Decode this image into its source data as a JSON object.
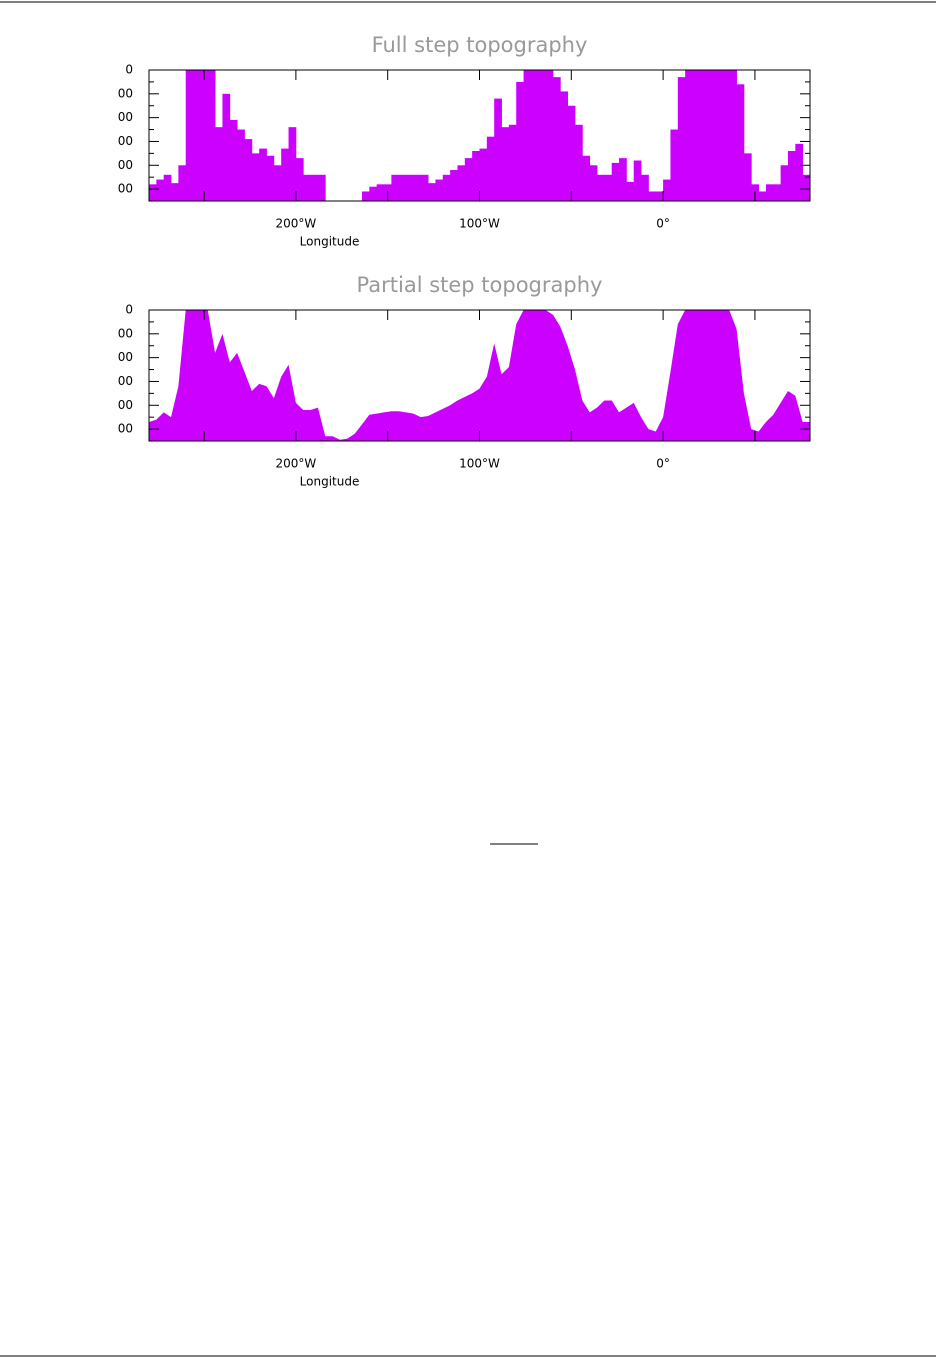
{
  "chart_data": [
    {
      "type": "step",
      "title": "Full step topography",
      "xlabel": "Longitude",
      "color": "#cc00ff",
      "xlim": [
        -280,
        80
      ],
      "ylim": [
        0,
        5500
      ],
      "yreverse": true,
      "xticks": [
        {
          "value": -200,
          "label": "200°W"
        },
        {
          "value": -100,
          "label": "100°W"
        },
        {
          "value": 0,
          "label": "0°"
        }
      ],
      "xminor": [
        -250,
        -150,
        -50,
        50
      ],
      "yticks": [
        0,
        {
          "value": 1000,
          "label": "00"
        },
        {
          "value": 2000,
          "label": "00"
        },
        {
          "value": 3000,
          "label": "00"
        },
        {
          "value": 4000,
          "label": "00"
        },
        {
          "value": 5000,
          "label": "00"
        }
      ],
      "yminor": [
        500,
        1500,
        2500,
        3500,
        4500,
        5500
      ],
      "x": [
        -280,
        -276,
        -272,
        -268,
        -264,
        -260,
        -256,
        -252,
        -248,
        -244,
        -240,
        -236,
        -232,
        -228,
        -224,
        -220,
        -216,
        -212,
        -208,
        -204,
        -200,
        -196,
        -192,
        -188,
        -184,
        -180,
        -176,
        -172,
        -168,
        -164,
        -160,
        -156,
        -152,
        -148,
        -144,
        -140,
        -136,
        -132,
        -128,
        -124,
        -120,
        -116,
        -112,
        -108,
        -104,
        -100,
        -96,
        -92,
        -88,
        -84,
        -80,
        -76,
        -72,
        -68,
        -64,
        -60,
        -56,
        -52,
        -48,
        -44,
        -40,
        -36,
        -32,
        -28,
        -24,
        -20,
        -16,
        -12,
        -8,
        -4,
        0,
        4,
        8,
        12,
        16,
        20,
        24,
        28,
        32,
        36,
        40,
        44,
        48,
        52,
        56,
        60,
        64,
        68,
        72,
        76
      ],
      "values": [
        4800,
        4600,
        4400,
        4750,
        4000,
        0,
        0,
        0,
        0,
        2400,
        1000,
        2100,
        2500,
        2900,
        3500,
        3300,
        3600,
        4000,
        3300,
        2400,
        3700,
        4400,
        4400,
        4400,
        5500,
        5500,
        5500,
        5500,
        5500,
        5100,
        4900,
        4800,
        4800,
        4400,
        4400,
        4400,
        4400,
        4400,
        4750,
        4600,
        4400,
        4200,
        4000,
        3700,
        3400,
        3300,
        2800,
        1200,
        2400,
        2300,
        500,
        0,
        0,
        0,
        0,
        300,
        900,
        1500,
        2300,
        3600,
        4000,
        4400,
        4400,
        3900,
        3700,
        4700,
        3800,
        4400,
        5100,
        5100,
        4600,
        2500,
        300,
        0,
        0,
        0,
        0,
        0,
        0,
        0,
        600,
        3500,
        4800,
        5100,
        4800,
        4800,
        4000,
        3400,
        3100,
        4400
      ]
    },
    {
      "type": "area",
      "title": "Partial step topography",
      "xlabel": "Longitude",
      "color": "#cc00ff",
      "xlim": [
        -280,
        80
      ],
      "ylim": [
        0,
        5500
      ],
      "yreverse": true,
      "xticks": [
        {
          "value": -200,
          "label": "200°W"
        },
        {
          "value": -100,
          "label": "100°W"
        },
        {
          "value": 0,
          "label": "0°"
        }
      ],
      "xminor": [
        -250,
        -150,
        -50,
        50
      ],
      "yticks": [
        0,
        {
          "value": 1000,
          "label": "00"
        },
        {
          "value": 2000,
          "label": "00"
        },
        {
          "value": 3000,
          "label": "00"
        },
        {
          "value": 4000,
          "label": "00"
        },
        {
          "value": 5000,
          "label": "00"
        }
      ],
      "yminor": [
        500,
        1500,
        2500,
        3500,
        4500,
        5500
      ],
      "x": [
        -280,
        -276,
        -272,
        -268,
        -264,
        -260,
        -256,
        -252,
        -248,
        -244,
        -240,
        -236,
        -232,
        -228,
        -224,
        -220,
        -216,
        -212,
        -208,
        -204,
        -200,
        -196,
        -192,
        -188,
        -184,
        -180,
        -176,
        -172,
        -168,
        -164,
        -160,
        -156,
        -152,
        -148,
        -144,
        -140,
        -136,
        -132,
        -128,
        -124,
        -120,
        -116,
        -112,
        -108,
        -104,
        -100,
        -96,
        -92,
        -88,
        -84,
        -80,
        -76,
        -72,
        -68,
        -64,
        -60,
        -56,
        -52,
        -48,
        -44,
        -40,
        -36,
        -32,
        -28,
        -24,
        -20,
        -16,
        -12,
        -8,
        -4,
        0,
        4,
        8,
        12,
        16,
        20,
        24,
        28,
        32,
        36,
        40,
        44,
        48,
        52,
        56,
        60,
        64,
        68,
        72,
        76
      ],
      "values": [
        4700,
        4600,
        4300,
        4500,
        3200,
        0,
        0,
        0,
        0,
        1800,
        1000,
        2200,
        1800,
        2600,
        3400,
        3100,
        3200,
        3700,
        2800,
        2300,
        3900,
        4200,
        4200,
        4100,
        5300,
        5300,
        5450,
        5400,
        5200,
        4800,
        4400,
        4350,
        4300,
        4250,
        4250,
        4300,
        4350,
        4500,
        4450,
        4300,
        4150,
        4000,
        3800,
        3650,
        3500,
        3300,
        2800,
        1400,
        2700,
        2400,
        600,
        0,
        0,
        0,
        0,
        200,
        700,
        1500,
        2500,
        3800,
        4300,
        4100,
        3800,
        3800,
        4300,
        4100,
        3900,
        4500,
        5000,
        5100,
        4500,
        2600,
        600,
        0,
        0,
        0,
        0,
        0,
        0,
        0,
        800,
        3500,
        5000,
        5100,
        4700,
        4400,
        3900,
        3400,
        3600,
        4700
      ]
    }
  ]
}
